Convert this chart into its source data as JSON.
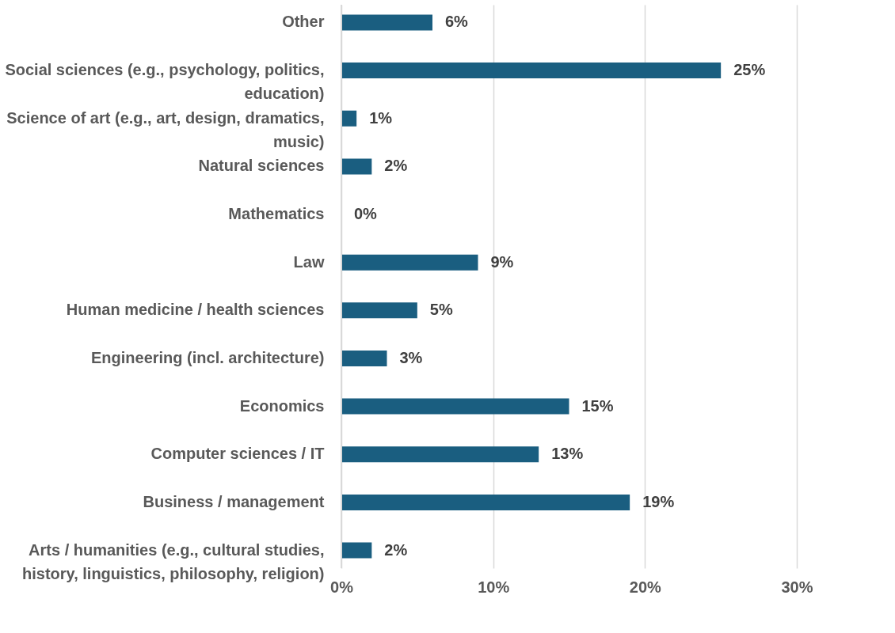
{
  "chart_data": {
    "type": "bar",
    "orientation": "horizontal",
    "categories": [
      "Other",
      "Social sciences (e.g., psychology, politics, education)",
      "Science of art (e.g., art, design, dramatics, music)",
      "Natural sciences",
      "Mathematics",
      "Law",
      "Human medicine / health sciences",
      "Engineering (incl. architecture)",
      "Economics",
      "Computer sciences / IT",
      "Business / management",
      "Arts / humanities (e.g., cultural studies, history, linguistics, philosophy, religion)"
    ],
    "values": [
      6,
      25,
      1,
      2,
      0,
      9,
      5,
      3,
      15,
      13,
      19,
      2
    ],
    "color": "#1a5e80",
    "xlim": [
      0,
      30
    ],
    "xticks": [
      {
        "value": 0,
        "label": "0%"
      },
      {
        "value": 10,
        "label": "10%"
      },
      {
        "value": 20,
        "label": "20%"
      },
      {
        "value": 30,
        "label": "30%"
      }
    ],
    "grid": "x",
    "value_labels": [
      "6%",
      "25%",
      "1%",
      "2%",
      "0%",
      "9%",
      "5%",
      "3%",
      "15%",
      "13%",
      "19%",
      "2%"
    ]
  }
}
